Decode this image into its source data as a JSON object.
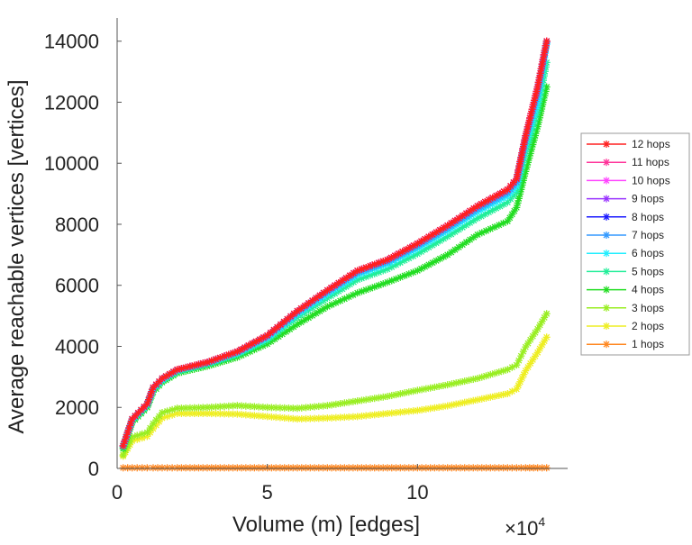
{
  "chart_data": {
    "type": "line",
    "title": "",
    "xlabel": "Volume (m) [edges]",
    "ylabel": "Average reachable vertices [vertices]",
    "x_multiplier_label": "×10",
    "x_multiplier_exp": "4",
    "xlim": [
      0,
      15
    ],
    "ylim": [
      0,
      14700
    ],
    "xticks": [
      0,
      5,
      10
    ],
    "xtick_labels": [
      "0",
      "5",
      "10"
    ],
    "yticks": [
      0,
      2000,
      4000,
      6000,
      8000,
      10000,
      12000,
      14000
    ],
    "ytick_labels": [
      "0",
      "2000",
      "4000",
      "6000",
      "8000",
      "10000",
      "12000",
      "14000"
    ],
    "grid": false,
    "legend_position": "right",
    "x": [
      0.2,
      0.5,
      1,
      1.2,
      1.5,
      2,
      3,
      4,
      5,
      6,
      7,
      8,
      9,
      10,
      11,
      12,
      13,
      13.3,
      13.6,
      14,
      14.3
    ],
    "series": [
      {
        "name": "12 hops",
        "color": "#ff2020",
        "values": [
          740,
          1620,
          2120,
          2650,
          2950,
          3240,
          3480,
          3830,
          4360,
          5160,
          5840,
          6480,
          6840,
          7370,
          7960,
          8600,
          9140,
          9490,
          10900,
          12500,
          14000
        ]
      },
      {
        "name": "11 hops",
        "color": "#ff3399",
        "values": [
          740,
          1620,
          2120,
          2650,
          2950,
          3240,
          3480,
          3830,
          4360,
          5160,
          5840,
          6480,
          6840,
          7370,
          7960,
          8600,
          9140,
          9490,
          10900,
          12500,
          14000
        ]
      },
      {
        "name": "10 hops",
        "color": "#ff44ff",
        "values": [
          740,
          1620,
          2120,
          2650,
          2950,
          3240,
          3480,
          3830,
          4360,
          5160,
          5840,
          6480,
          6840,
          7370,
          7960,
          8600,
          9140,
          9490,
          10900,
          12500,
          14000
        ]
      },
      {
        "name": "9 hops",
        "color": "#9933ff",
        "values": [
          740,
          1620,
          2120,
          2650,
          2950,
          3240,
          3480,
          3830,
          4360,
          5160,
          5840,
          6480,
          6840,
          7370,
          7960,
          8600,
          9140,
          9490,
          10900,
          12500,
          14000
        ]
      },
      {
        "name": "8 hops",
        "color": "#1a1aff",
        "values": [
          740,
          1620,
          2120,
          2650,
          2950,
          3240,
          3480,
          3830,
          4360,
          5160,
          5840,
          6480,
          6840,
          7370,
          7960,
          8600,
          9140,
          9490,
          10900,
          12500,
          14000
        ]
      },
      {
        "name": "7 hops",
        "color": "#3399ff",
        "values": [
          730,
          1600,
          2100,
          2630,
          2930,
          3220,
          3460,
          3800,
          4320,
          5110,
          5780,
          6410,
          6770,
          7290,
          7870,
          8500,
          9030,
          9380,
          10800,
          12300,
          13950
        ]
      },
      {
        "name": "6 hops",
        "color": "#22eeff",
        "values": [
          720,
          1580,
          2080,
          2600,
          2900,
          3200,
          3440,
          3770,
          4270,
          5050,
          5710,
          6330,
          6690,
          7200,
          7780,
          8400,
          8920,
          9250,
          10600,
          12000,
          13900
        ]
      },
      {
        "name": "5 hops",
        "color": "#22ee99",
        "values": [
          700,
          1550,
          2050,
          2570,
          2870,
          3170,
          3410,
          3720,
          4200,
          4950,
          5580,
          6180,
          6530,
          7030,
          7600,
          8200,
          8720,
          9050,
          10300,
          11700,
          13300
        ]
      },
      {
        "name": "4 hops",
        "color": "#22dd22",
        "values": [
          650,
          1500,
          2000,
          2500,
          2820,
          3120,
          3350,
          3640,
          4080,
          4720,
          5300,
          5750,
          6100,
          6480,
          7000,
          7660,
          8100,
          8550,
          9730,
          11200,
          12500
        ]
      },
      {
        "name": "3 hops",
        "color": "#99ee22",
        "values": [
          440,
          1030,
          1180,
          1470,
          1830,
          1970,
          2000,
          2060,
          2000,
          1970,
          2060,
          2210,
          2360,
          2560,
          2740,
          2950,
          3240,
          3390,
          3980,
          4570,
          5070
        ]
      },
      {
        "name": "2 hops",
        "color": "#eeee22",
        "values": [
          400,
          900,
          1050,
          1300,
          1650,
          1800,
          1800,
          1780,
          1700,
          1620,
          1650,
          1700,
          1800,
          1900,
          2050,
          2250,
          2450,
          2600,
          3200,
          3800,
          4300
        ]
      },
      {
        "name": "1 hops",
        "color": "#ff8822",
        "values": [
          20,
          20,
          20,
          20,
          20,
          20,
          20,
          20,
          20,
          20,
          20,
          20,
          20,
          20,
          20,
          20,
          20,
          20,
          20,
          20,
          20
        ]
      }
    ]
  }
}
